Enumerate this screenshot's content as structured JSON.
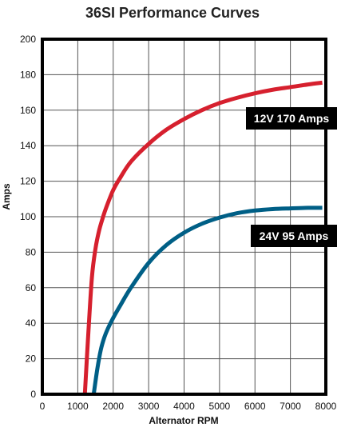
{
  "chart_data": {
    "type": "line",
    "title": "36SI Performance Curves",
    "xlabel": "Alternator RPM",
    "ylabel": "Amps",
    "xlim": [
      0,
      8000
    ],
    "ylim": [
      0,
      200
    ],
    "xticks": [
      0,
      1000,
      2000,
      3000,
      4000,
      5000,
      6000,
      7000,
      8000
    ],
    "yticks": [
      0,
      20,
      40,
      60,
      80,
      100,
      120,
      140,
      160,
      180,
      200
    ],
    "grid": true,
    "legend": "none",
    "series": [
      {
        "name": "12V 170 Amps",
        "color": "#d6202e",
        "x": [
          1200,
          1300,
          1400,
          1500,
          1600,
          1700,
          1800,
          2000,
          2200,
          2500,
          3000,
          3500,
          4000,
          4500,
          5000,
          5500,
          6000,
          6500,
          7000,
          7500,
          7900
        ],
        "y": [
          0,
          35,
          66,
          82,
          92,
          99,
          105,
          115,
          122,
          131,
          141,
          149,
          155,
          160,
          164,
          167,
          169.5,
          171.5,
          173,
          174.5,
          175.5
        ]
      },
      {
        "name": "24V 95 Amps",
        "color": "#005f86",
        "x": [
          1450,
          1550,
          1650,
          1750,
          1850,
          2000,
          2200,
          2500,
          3000,
          3500,
          4000,
          4500,
          5000,
          5500,
          6000,
          6500,
          7000,
          7500,
          7900
        ],
        "y": [
          0,
          14,
          25,
          32,
          37,
          43,
          50,
          60,
          74,
          84,
          91,
          96,
          99.5,
          102,
          103.5,
          104.3,
          104.7,
          105,
          105
        ]
      }
    ]
  }
}
